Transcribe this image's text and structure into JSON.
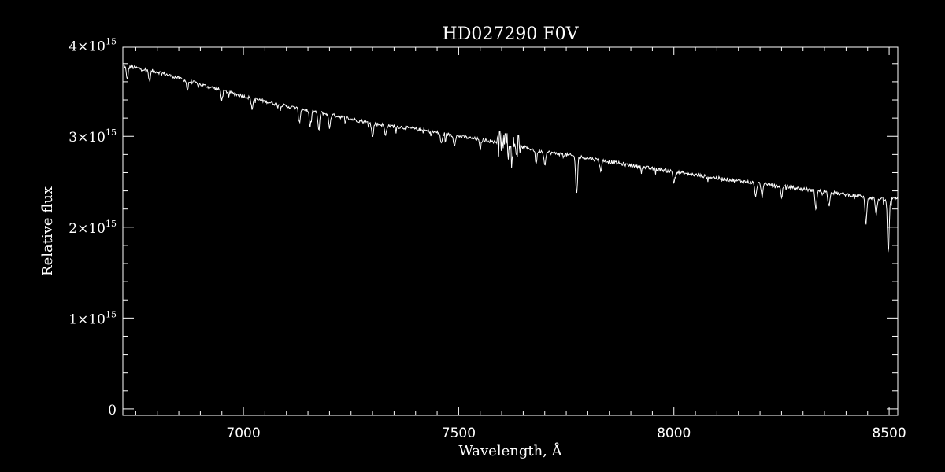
{
  "chart_data": {
    "type": "line",
    "title": "HD027290  F0V",
    "xlabel": "Wavelength, Å",
    "ylabel": "Relative flux",
    "xlim": [
      6720,
      8520
    ],
    "ylim": [
      -70000000000000.0,
      3980000000000000.0
    ],
    "x_ticks": [
      7000,
      7500,
      8000,
      8500
    ],
    "x_tick_labels": [
      "7000",
      "7500",
      "8000",
      "8500"
    ],
    "y_ticks": [
      0,
      1000000000000000.0,
      2000000000000000.0,
      3000000000000000.0,
      4000000000000000.0
    ],
    "y_tick_labels": [
      {
        "mantissa": "0",
        "exponent": ""
      },
      {
        "mantissa": "1×10",
        "exponent": "15"
      },
      {
        "mantissa": "2×10",
        "exponent": "15"
      },
      {
        "mantissa": "3×10",
        "exponent": "15"
      },
      {
        "mantissa": "4×10",
        "exponent": "15"
      }
    ],
    "grid": false,
    "line_color": "#ffffff",
    "background": "#000000",
    "series": [
      {
        "continuum_points": [
          [
            6720,
            3780000000000000.0
          ],
          [
            6800,
            3710000000000000.0
          ],
          [
            6900,
            3570000000000000.0
          ],
          [
            7000,
            3440000000000000.0
          ],
          [
            7100,
            3330000000000000.0
          ],
          [
            7200,
            3240000000000000.0
          ],
          [
            7300,
            3140000000000000.0
          ],
          [
            7400,
            3080000000000000.0
          ],
          [
            7500,
            3000000000000000.0
          ],
          [
            7600,
            2930000000000000.0
          ],
          [
            7700,
            2830000000000000.0
          ],
          [
            7800,
            2760000000000000.0
          ],
          [
            7900,
            2680000000000000.0
          ],
          [
            8000,
            2610000000000000.0
          ],
          [
            8100,
            2540000000000000.0
          ],
          [
            8200,
            2480000000000000.0
          ],
          [
            8300,
            2420000000000000.0
          ],
          [
            8400,
            2360000000000000.0
          ],
          [
            8500,
            2300000000000000.0
          ],
          [
            8520,
            2320000000000000.0
          ]
        ],
        "absorption_lines": [
          [
            6730,
            150000000000000.0
          ],
          [
            6782,
            120000000000000.0
          ],
          [
            6870,
            100000000000000.0
          ],
          [
            6950,
            100000000000000.0
          ],
          [
            7020,
            120000000000000.0
          ],
          [
            7130,
            160000000000000.0
          ],
          [
            7155,
            180000000000000.0
          ],
          [
            7175,
            200000000000000.0
          ],
          [
            7200,
            150000000000000.0
          ],
          [
            7300,
            150000000000000.0
          ],
          [
            7330,
            120000000000000.0
          ],
          [
            7460,
            120000000000000.0
          ],
          [
            7490,
            100000000000000.0
          ],
          [
            7550,
            100000000000000.0
          ],
          [
            7620,
            150000000000000.0
          ],
          [
            7680,
            150000000000000.0
          ],
          [
            7700,
            140000000000000.0
          ],
          [
            7774,
            420000000000000.0
          ],
          [
            7830,
            120000000000000.0
          ],
          [
            8000,
            120000000000000.0
          ],
          [
            8190,
            160000000000000.0
          ],
          [
            8205,
            140000000000000.0
          ],
          [
            8250,
            120000000000000.0
          ],
          [
            8330,
            200000000000000.0
          ],
          [
            8360,
            150000000000000.0
          ],
          [
            8446,
            300000000000000.0
          ],
          [
            8470,
            180000000000000.0
          ],
          [
            8498,
            600000000000000.0
          ]
        ],
        "noise_amplitude": 20000000000000.0,
        "telluric_band": {
          "x_start": 7590,
          "x_end": 7640,
          "amplitude": 150000000000000.0
        }
      }
    ]
  }
}
